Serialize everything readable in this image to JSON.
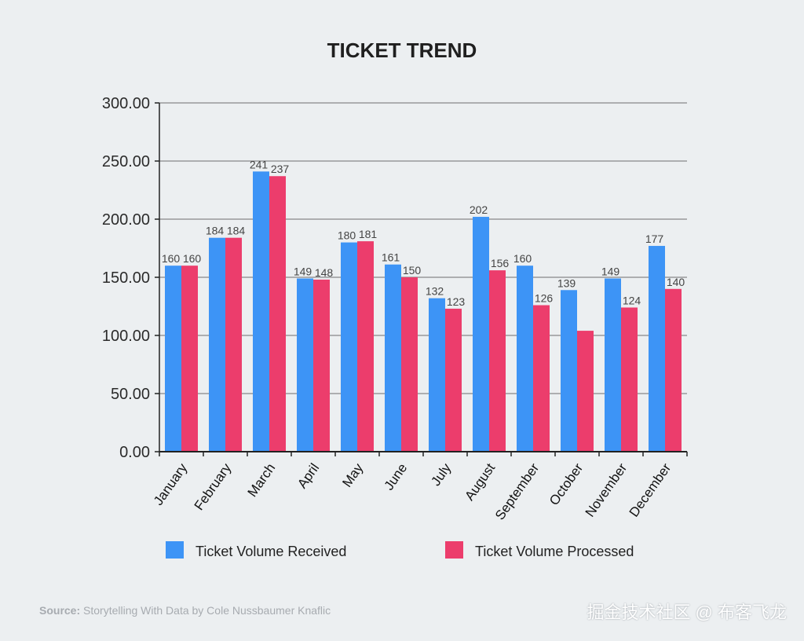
{
  "chart_data": {
    "type": "bar",
    "title": "TICKET TREND",
    "categories": [
      "January",
      "February",
      "March",
      "April",
      "May",
      "June",
      "July",
      "August",
      "September",
      "October",
      "November",
      "December"
    ],
    "series": [
      {
        "name": "Ticket Volume Received",
        "color": "#3d94f6",
        "values": [
          160,
          184,
          241,
          149,
          180,
          161,
          132,
          202,
          160,
          139,
          149,
          177
        ],
        "labels": [
          "160",
          "184",
          "241",
          "149",
          "180",
          "161",
          "132",
          "202",
          "160",
          "139",
          "149",
          "177"
        ]
      },
      {
        "name": "Ticket Volume Processed",
        "color": "#ec3d6c",
        "values": [
          160,
          184,
          237,
          148,
          181,
          150,
          123,
          156,
          126,
          104,
          124,
          140
        ],
        "labels": [
          "160",
          "184",
          "237",
          "148",
          "181",
          "150",
          "123",
          "156",
          "126",
          "",
          "124",
          "140"
        ]
      }
    ],
    "yticks": [
      "0.00",
      "50.00",
      "100.00",
      "150.00",
      "200.00",
      "250.00",
      "300.00"
    ],
    "ylim": [
      0,
      300
    ],
    "grid": true,
    "legend": "bottom"
  },
  "footer": {
    "source_label": "Source:",
    "source_text": " Storytelling With Data by Cole Nussbaumer Knaflic",
    "watermark": "掘金技术社区 @ 布客飞龙"
  }
}
